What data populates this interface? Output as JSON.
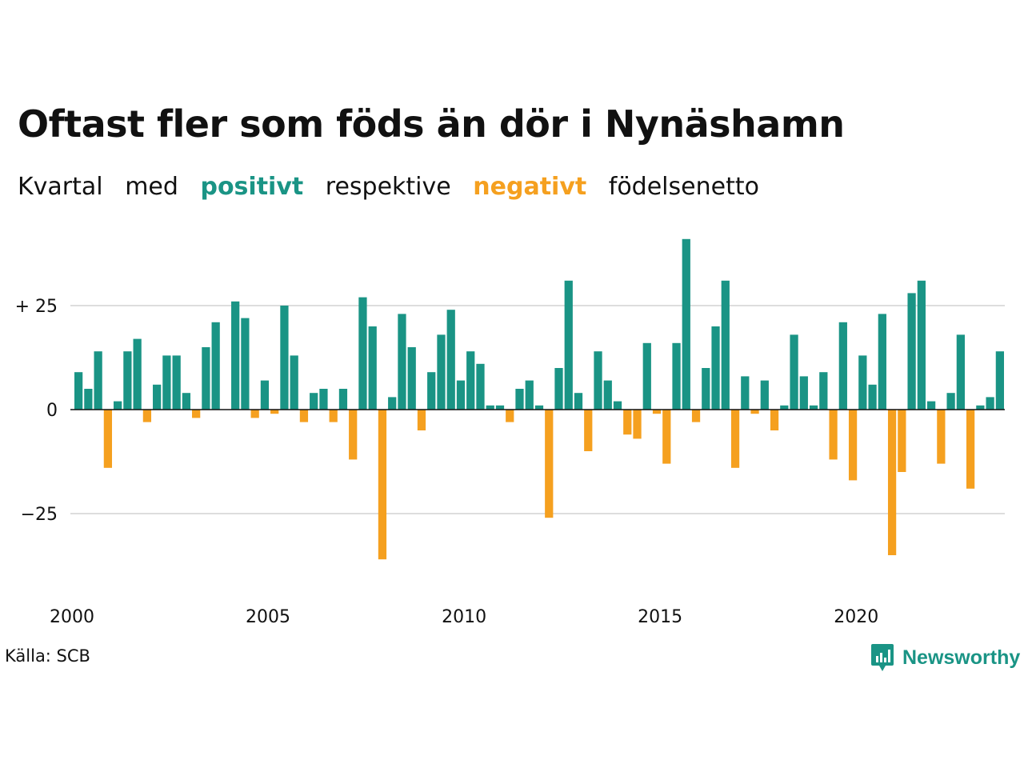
{
  "header": {
    "title": "Oftast fler som föds än dör i Nynäshamn",
    "subtitle": {
      "part1": "Kvartal",
      "part2": "med",
      "positive": "positivt",
      "part3": "respektive",
      "negative": "negativt",
      "part4": "födelsenetto"
    }
  },
  "footer": {
    "source": "Källa: SCB",
    "brand": "Newsworthy",
    "brand_icon": "newsworthy-logo-icon"
  },
  "colors": {
    "positive": "#1a9485",
    "negative": "#f5a01f",
    "grid": "#dddddd",
    "text": "#111111"
  },
  "chart_data": {
    "type": "bar",
    "x_start_year": 2000,
    "x_tick_labels": [
      "2000",
      "2005",
      "2010",
      "2015",
      "2020"
    ],
    "y_tick_labels": [
      "+ 25",
      "0",
      "−25"
    ],
    "y_ticks": [
      25,
      0,
      -25
    ],
    "ylim": [
      -38,
      42
    ],
    "grid": true,
    "values": [
      9,
      5,
      14,
      -14,
      2,
      14,
      17,
      -3,
      6,
      13,
      13,
      4,
      -2,
      15,
      21,
      0,
      26,
      22,
      -2,
      7,
      -1,
      25,
      13,
      -3,
      4,
      5,
      -3,
      5,
      -12,
      27,
      20,
      -36,
      3,
      23,
      15,
      -5,
      9,
      18,
      24,
      7,
      14,
      11,
      1,
      1,
      -3,
      5,
      7,
      1,
      -26,
      10,
      31,
      4,
      -10,
      14,
      7,
      2,
      -6,
      -7,
      16,
      -1,
      -13,
      16,
      41,
      -3,
      10,
      20,
      31,
      -14,
      8,
      -1,
      7,
      -5,
      1,
      18,
      8,
      1,
      9,
      -12,
      21,
      -17,
      13,
      6,
      23,
      -35,
      -15,
      28,
      31,
      2,
      -13,
      4,
      18,
      -19,
      1,
      3,
      14
    ]
  }
}
